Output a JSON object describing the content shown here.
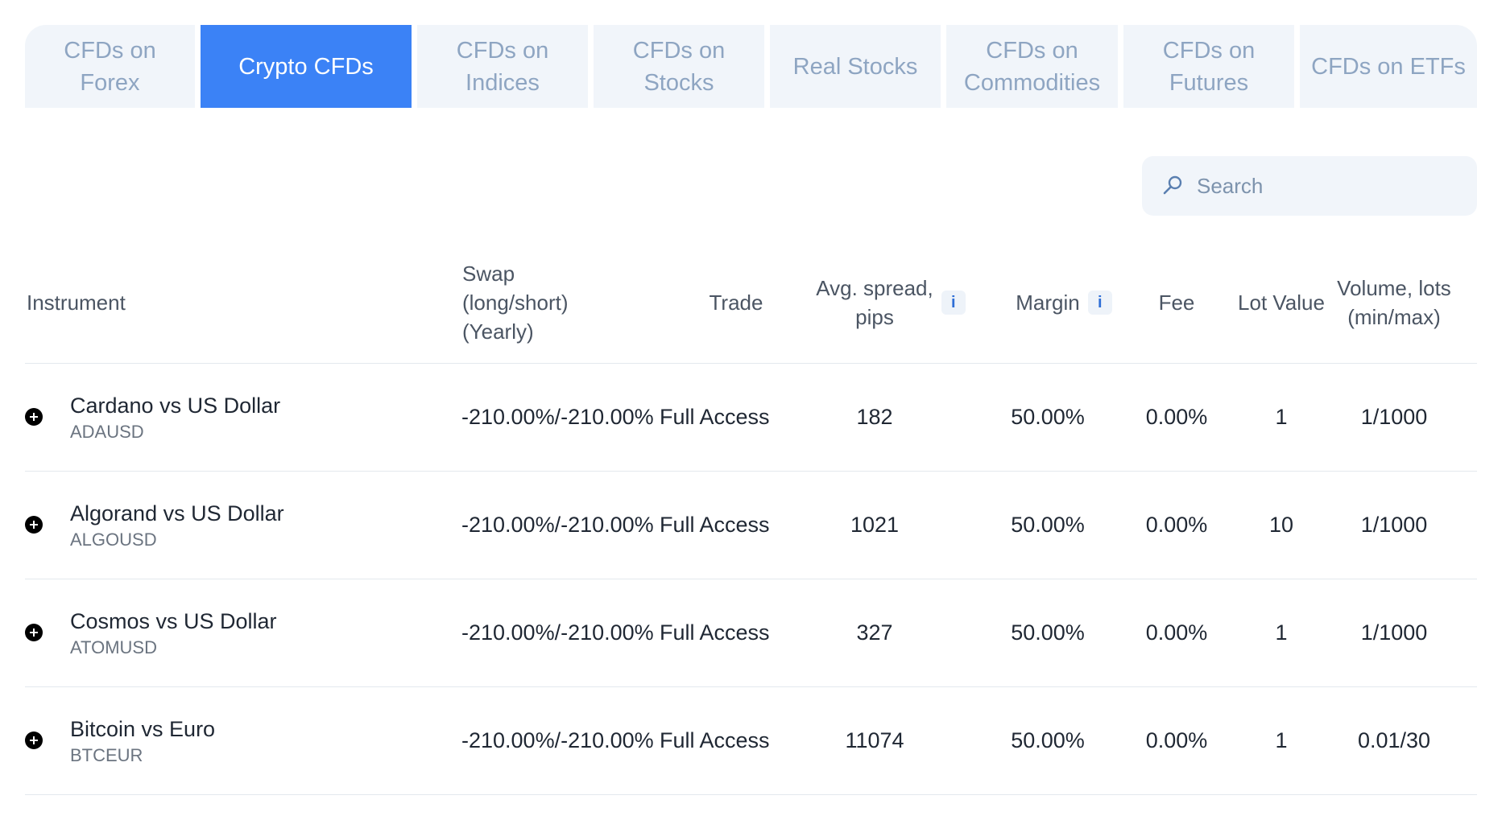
{
  "tabs": [
    {
      "label": "CFDs on\nForex",
      "active": false
    },
    {
      "label": "Crypto CFDs",
      "active": true
    },
    {
      "label": "CFDs on\nIndices",
      "active": false
    },
    {
      "label": "CFDs on\nStocks",
      "active": false
    },
    {
      "label": "Real Stocks",
      "active": false
    },
    {
      "label": "CFDs on\nCommodities",
      "active": false
    },
    {
      "label": "CFDs on\nFutures",
      "active": false
    },
    {
      "label": "CFDs on ETFs",
      "active": false
    }
  ],
  "search": {
    "placeholder": "Search",
    "value": ""
  },
  "table": {
    "headers": {
      "instrument": "Instrument",
      "swap": "Swap\n(long/short)\n(Yearly)",
      "trade": "Trade",
      "spread": "Avg. spread,\npips",
      "margin": "Margin",
      "fee": "Fee",
      "lot_value": "Lot Value",
      "volume": "Volume, lots\n(min/max)",
      "info": "i"
    },
    "rows": [
      {
        "name": "Cardano vs US Dollar",
        "code": "ADAUSD",
        "swap": "-210.00%/-210.00%",
        "trade": "Full Access",
        "spread": "182",
        "margin": "50.00%",
        "fee": "0.00%",
        "lot_value": "1",
        "volume": "1/1000"
      },
      {
        "name": "Algorand vs US Dollar",
        "code": "ALGOUSD",
        "swap": "-210.00%/-210.00%",
        "trade": "Full Access",
        "spread": "1021",
        "margin": "50.00%",
        "fee": "0.00%",
        "lot_value": "10",
        "volume": "1/1000"
      },
      {
        "name": "Cosmos vs US Dollar",
        "code": "ATOMUSD",
        "swap": "-210.00%/-210.00%",
        "trade": "Full Access",
        "spread": "327",
        "margin": "50.00%",
        "fee": "0.00%",
        "lot_value": "1",
        "volume": "1/1000"
      },
      {
        "name": "Bitcoin vs Euro",
        "code": "BTCEUR",
        "swap": "-210.00%/-210.00%",
        "trade": "Full Access",
        "spread": "11074",
        "margin": "50.00%",
        "fee": "0.00%",
        "lot_value": "1",
        "volume": "0.01/30"
      }
    ]
  },
  "colors": {
    "accent": "#3b82f6",
    "tab_bg": "#f1f5fa",
    "tab_text": "#8ea5c2"
  },
  "icons": {
    "expand": "plus-circle-icon",
    "search": "search-icon",
    "info": "info-icon"
  }
}
